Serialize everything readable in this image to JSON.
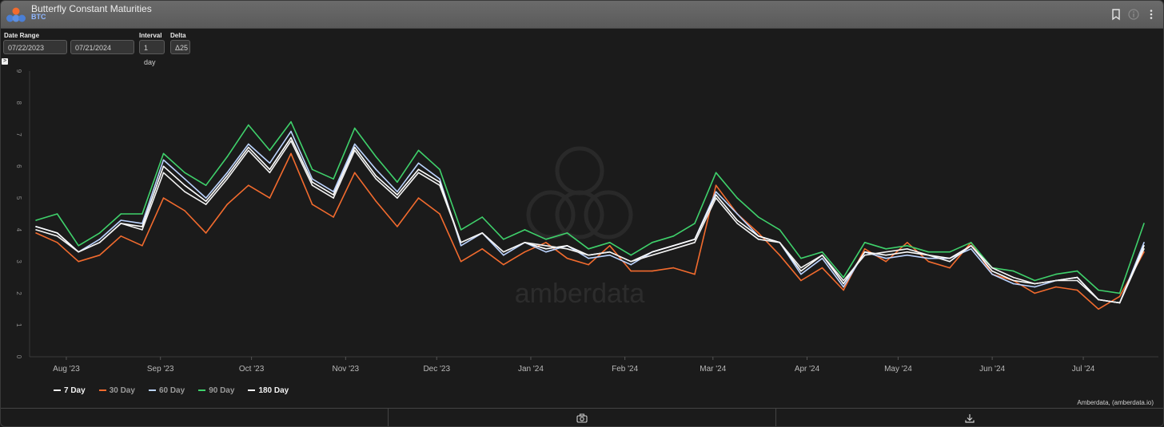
{
  "header": {
    "title": "Butterfly Constant Maturities",
    "subtitle": "BTC",
    "icons": [
      "bookmark-icon",
      "info-icon",
      "more-vert-icon"
    ]
  },
  "controls": {
    "date_range_label": "Date Range",
    "start_date": "07/22/2023",
    "end_date": "07/21/2024",
    "interval_label": "Interval",
    "interval_value": "1 day",
    "delta_label": "Delta",
    "delta_value": "Δ25",
    "expand_glyph": ">"
  },
  "watermark": "amberdata",
  "credit": "Amberdata, (amberdata.io)",
  "footer": {
    "icons": [
      "camera-icon",
      "download-icon"
    ]
  },
  "colors": {
    "background": "#1b1b1b",
    "d7": "#f2f2f2",
    "d30": "#f26b2e",
    "d60": "#bcd4ff",
    "d90": "#3fd16b",
    "d180": "#ffffff"
  },
  "chart_data": {
    "type": "line",
    "title": "Butterfly Constant Maturities",
    "subtitle": "BTC",
    "ylim": [
      0,
      9
    ],
    "yticks": [
      "0",
      "1",
      "2",
      "3",
      "4",
      "5",
      "6",
      "7",
      "8",
      "9"
    ],
    "xticks": [
      "Aug '23",
      "Sep '23",
      "Oct '23",
      "Nov '23",
      "Dec '23",
      "Jan '24",
      "Feb '24",
      "Mar '24",
      "Apr '24",
      "May '24",
      "Jun '24",
      "Jul '24"
    ],
    "x_range": [
      "2023-07-22",
      "2024-07-21"
    ],
    "grid": false,
    "legend_position": "bottom-left",
    "legend": [
      "7 Day",
      "30 Day",
      "60 Day",
      "90 Day",
      "180 Day"
    ],
    "x": [
      "2023-07-22",
      "2023-07-29",
      "2023-08-05",
      "2023-08-12",
      "2023-08-19",
      "2023-08-26",
      "2023-09-02",
      "2023-09-09",
      "2023-09-16",
      "2023-09-23",
      "2023-09-30",
      "2023-10-07",
      "2023-10-14",
      "2023-10-21",
      "2023-10-28",
      "2023-11-04",
      "2023-11-11",
      "2023-11-18",
      "2023-11-25",
      "2023-12-02",
      "2023-12-09",
      "2023-12-16",
      "2023-12-23",
      "2023-12-30",
      "2024-01-06",
      "2024-01-13",
      "2024-01-20",
      "2024-01-27",
      "2024-02-03",
      "2024-02-10",
      "2024-02-17",
      "2024-02-24",
      "2024-03-02",
      "2024-03-09",
      "2024-03-16",
      "2024-03-23",
      "2024-03-30",
      "2024-04-06",
      "2024-04-13",
      "2024-04-20",
      "2024-04-27",
      "2024-05-04",
      "2024-05-11",
      "2024-05-18",
      "2024-05-25",
      "2024-06-01",
      "2024-06-08",
      "2024-06-15",
      "2024-06-22",
      "2024-06-29",
      "2024-07-06",
      "2024-07-13",
      "2024-07-21"
    ],
    "series": [
      {
        "name": "7 Day",
        "color": "#f2f2f2",
        "values": [
          4.0,
          3.8,
          3.3,
          3.6,
          4.2,
          4.0,
          5.8,
          5.2,
          4.8,
          5.6,
          6.5,
          5.8,
          6.8,
          5.4,
          5.0,
          6.5,
          5.6,
          5.0,
          5.8,
          5.4,
          3.6,
          3.9,
          3.3,
          3.6,
          3.5,
          3.4,
          3.2,
          3.3,
          3.0,
          3.2,
          3.4,
          3.6,
          5.0,
          4.2,
          3.7,
          3.6,
          2.8,
          3.2,
          2.4,
          3.2,
          3.3,
          3.4,
          3.2,
          3.0,
          3.5,
          2.8,
          2.5,
          2.3,
          2.4,
          2.4,
          1.8,
          1.7,
          3.4
        ]
      },
      {
        "name": "30 Day",
        "color": "#f26b2e",
        "values": [
          3.9,
          3.6,
          3.0,
          3.2,
          3.8,
          3.5,
          5.0,
          4.6,
          3.9,
          4.8,
          5.4,
          5.0,
          6.4,
          4.8,
          4.4,
          5.8,
          4.9,
          4.1,
          5.0,
          4.5,
          3.0,
          3.4,
          2.9,
          3.3,
          3.6,
          3.1,
          2.9,
          3.5,
          2.7,
          2.7,
          2.8,
          2.6,
          5.4,
          4.5,
          3.9,
          3.2,
          2.4,
          2.8,
          2.1,
          3.4,
          3.0,
          3.6,
          3.0,
          2.8,
          3.6,
          2.6,
          2.4,
          2.0,
          2.2,
          2.1,
          1.5,
          1.9,
          3.3
        ]
      },
      {
        "name": "60 Day",
        "color": "#bcd4ff",
        "values": [
          4.1,
          3.9,
          3.3,
          3.7,
          4.3,
          4.2,
          6.2,
          5.6,
          5.0,
          5.8,
          6.7,
          6.1,
          7.1,
          5.6,
          5.2,
          6.7,
          5.9,
          5.2,
          6.1,
          5.6,
          3.5,
          3.9,
          3.2,
          3.6,
          3.3,
          3.5,
          3.1,
          3.2,
          2.9,
          3.3,
          3.5,
          3.7,
          5.2,
          4.5,
          3.8,
          3.6,
          2.6,
          3.1,
          2.2,
          3.3,
          3.1,
          3.2,
          3.1,
          3.1,
          3.4,
          2.6,
          2.3,
          2.2,
          2.4,
          2.5,
          1.8,
          1.7,
          3.6
        ]
      },
      {
        "name": "90 Day",
        "color": "#3fd16b",
        "values": [
          4.3,
          4.5,
          3.5,
          3.9,
          4.5,
          4.5,
          6.4,
          5.8,
          5.4,
          6.3,
          7.3,
          6.5,
          7.4,
          5.9,
          5.6,
          7.2,
          6.3,
          5.5,
          6.5,
          5.9,
          4.0,
          4.4,
          3.7,
          4.0,
          3.7,
          3.9,
          3.4,
          3.6,
          3.2,
          3.6,
          3.8,
          4.2,
          5.8,
          5.0,
          4.4,
          4.0,
          3.1,
          3.3,
          2.5,
          3.6,
          3.4,
          3.5,
          3.3,
          3.3,
          3.6,
          2.8,
          2.7,
          2.4,
          2.6,
          2.7,
          2.1,
          2.0,
          4.2
        ]
      },
      {
        "name": "180 Day",
        "color": "#ffffff",
        "values": [
          4.1,
          3.9,
          3.3,
          3.6,
          4.2,
          4.1,
          6.0,
          5.4,
          4.9,
          5.7,
          6.6,
          5.9,
          6.9,
          5.5,
          5.1,
          6.6,
          5.7,
          5.1,
          5.9,
          5.5,
          3.6,
          3.9,
          3.3,
          3.6,
          3.4,
          3.5,
          3.2,
          3.3,
          3.0,
          3.3,
          3.5,
          3.7,
          5.1,
          4.3,
          3.8,
          3.6,
          2.7,
          3.2,
          2.3,
          3.3,
          3.2,
          3.3,
          3.2,
          3.1,
          3.5,
          2.7,
          2.4,
          2.3,
          2.4,
          2.5,
          1.8,
          1.7,
          3.5
        ]
      }
    ]
  }
}
